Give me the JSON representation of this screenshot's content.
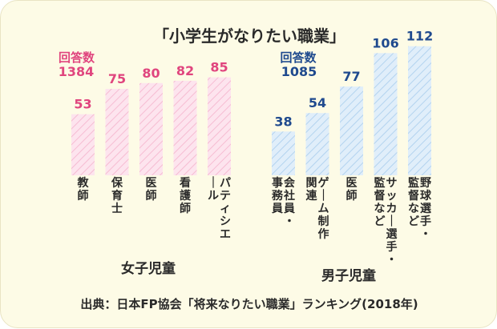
{
  "chart_data": [
    {
      "type": "bar",
      "group": "女子児童",
      "count_label": "回答数",
      "count": "1384",
      "categories": [
        "教師",
        "保育士",
        "医師",
        "看護師",
        "パティシエール"
      ],
      "values": [
        53,
        75,
        80,
        82,
        85
      ],
      "color": "#e0457e",
      "ylim": [
        0,
        115
      ]
    },
    {
      "type": "bar",
      "group": "男子児童",
      "count_label": "回答数",
      "count": "1085",
      "categories": [
        "会社員・事務員",
        "ゲーム制作関連",
        "医師",
        "サッカー選手・監督など",
        "野球選手・監督など"
      ],
      "values": [
        38,
        54,
        77,
        106,
        112
      ],
      "color": "#1f4a8e",
      "ylim": [
        0,
        115
      ]
    }
  ]
}
